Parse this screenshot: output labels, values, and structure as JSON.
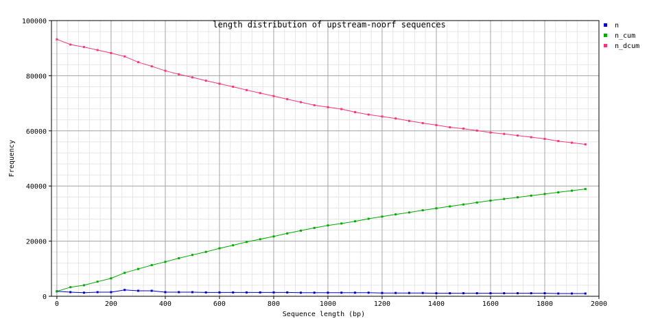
{
  "chart_data": {
    "type": "line",
    "title": "length distribution of upstream-noorf sequences",
    "xlabel": "Sequence length (bp)",
    "ylabel": "Frequency",
    "xlim": [
      -20,
      2000
    ],
    "ylim": [
      0,
      100000
    ],
    "x_ticks": [
      0,
      200,
      400,
      600,
      800,
      1000,
      1200,
      1400,
      1600,
      1800,
      2000
    ],
    "y_ticks": [
      0,
      20000,
      40000,
      60000,
      80000,
      100000
    ],
    "x_minor_step": 40,
    "y_minor_step": 4000,
    "grid": true,
    "legend_position": "top-right",
    "x": [
      0,
      50,
      100,
      150,
      200,
      250,
      300,
      350,
      400,
      450,
      500,
      550,
      600,
      650,
      700,
      750,
      800,
      850,
      900,
      950,
      1000,
      1050,
      1100,
      1150,
      1200,
      1250,
      1300,
      1350,
      1400,
      1450,
      1500,
      1550,
      1600,
      1650,
      1700,
      1750,
      1800,
      1850,
      1900,
      1950
    ],
    "series": [
      {
        "name": "n",
        "color": "#0000cc",
        "values": [
          1800,
          1500,
          1300,
          1500,
          1500,
          2300,
          2000,
          2000,
          1500,
          1500,
          1500,
          1400,
          1400,
          1400,
          1400,
          1400,
          1400,
          1400,
          1300,
          1300,
          1300,
          1300,
          1300,
          1300,
          1200,
          1200,
          1200,
          1200,
          1100,
          1100,
          1100,
          1100,
          1100,
          1100,
          1100,
          1100,
          1100,
          1000,
          1000,
          1000
        ]
      },
      {
        "name": "n_cum",
        "color": "#00aa00",
        "values": [
          1800,
          3300,
          4000,
          5300,
          6500,
          8500,
          9900,
          11300,
          12500,
          13800,
          15000,
          16100,
          17400,
          18500,
          19700,
          20700,
          21700,
          22800,
          23800,
          24800,
          25700,
          26400,
          27200,
          28100,
          28900,
          29700,
          30400,
          31200,
          31900,
          32600,
          33300,
          34000,
          34700,
          35300,
          35900,
          36500,
          37100,
          37700,
          38300,
          38900
        ]
      },
      {
        "name": "n_dcum",
        "color": "#ff3377",
        "values": [
          93200,
          91300,
          90400,
          89300,
          88200,
          87000,
          84900,
          83400,
          81800,
          80500,
          79400,
          78200,
          77100,
          76000,
          74800,
          73700,
          72600,
          71500,
          70400,
          69300,
          68600,
          67900,
          66800,
          65900,
          65200,
          64500,
          63600,
          62800,
          62100,
          61300,
          60800,
          60100,
          59400,
          58900,
          58300,
          57700,
          57100,
          56300,
          55700,
          55100
        ]
      }
    ]
  }
}
